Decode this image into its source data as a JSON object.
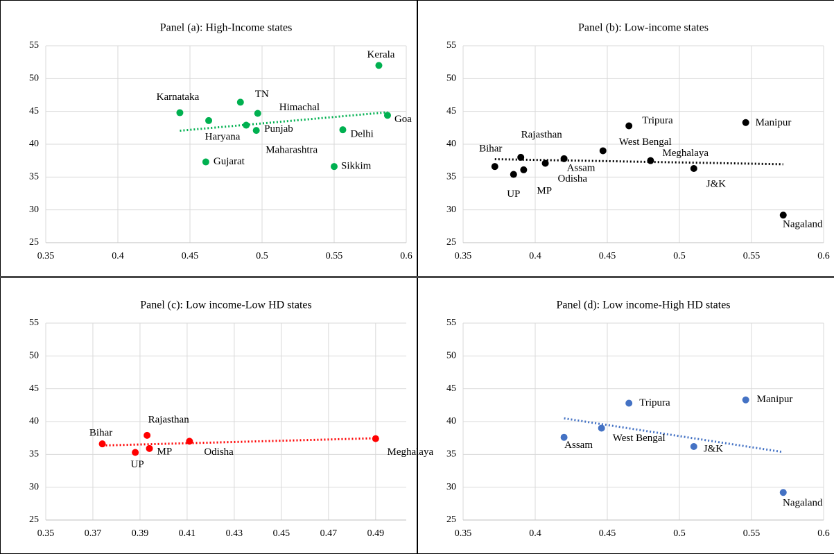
{
  "chart_data": [
    {
      "type": "scatter",
      "title": "Panel (a): High-Income states",
      "color": "#00b050",
      "trendline": true,
      "grid": true,
      "xlim": [
        0.35,
        0.6
      ],
      "xticks": [
        0.35,
        0.4,
        0.45,
        0.5,
        0.55,
        0.6
      ],
      "ylim": [
        25,
        55
      ],
      "yticks": [
        25,
        30,
        35,
        40,
        45,
        50,
        55
      ],
      "point_labels": [
        "Kerala",
        "Karnataka",
        "TN",
        "Himachal",
        "Haryana",
        "Punjab",
        "Maharashtra",
        "Goa",
        "Delhi",
        "Gujarat",
        "Sikkim"
      ],
      "x": [
        0.581,
        0.443,
        0.485,
        0.497,
        0.463,
        0.489,
        0.496,
        0.587,
        0.556,
        0.461,
        0.55
      ],
      "values": [
        52.0,
        44.8,
        46.4,
        44.7,
        43.6,
        42.9,
        42.1,
        44.4,
        42.2,
        37.3,
        36.6
      ]
    },
    {
      "type": "scatter",
      "title": "Panel (b): Low-income states",
      "color": "#000000",
      "trendline": true,
      "grid": true,
      "xlim": [
        0.35,
        0.6
      ],
      "xticks": [
        0.35,
        0.4,
        0.45,
        0.5,
        0.55,
        0.6
      ],
      "ylim": [
        25,
        55
      ],
      "yticks": [
        25,
        30,
        35,
        40,
        45,
        50,
        55
      ],
      "point_labels": [
        "Bihar",
        "UP",
        "Rajasthan",
        "MP",
        "Odisha",
        "Assam",
        "West Bengal",
        "Tripura",
        "Meghalaya",
        "J&K",
        "Manipur",
        "Nagaland"
      ],
      "x": [
        0.372,
        0.385,
        0.39,
        0.392,
        0.407,
        0.42,
        0.447,
        0.465,
        0.48,
        0.51,
        0.546,
        0.572
      ],
      "values": [
        36.6,
        35.4,
        38.0,
        36.1,
        37.1,
        37.8,
        39.0,
        42.8,
        37.5,
        36.3,
        43.3,
        29.2
      ]
    },
    {
      "type": "scatter",
      "title": "Panel (c): Low income-Low HD states",
      "color": "#ff0000",
      "trendline": true,
      "grid": true,
      "xlim": [
        0.35,
        0.503
      ],
      "xticks": [
        0.35,
        0.37,
        0.39,
        0.41,
        0.43,
        0.45,
        0.47,
        0.49
      ],
      "ylim": [
        25,
        55
      ],
      "yticks": [
        25,
        30,
        35,
        40,
        45,
        50,
        55
      ],
      "point_labels": [
        "Bihar",
        "UP",
        "Rajasthan",
        "MP",
        "Odisha",
        "Meghalaya"
      ],
      "x": [
        0.374,
        0.388,
        0.393,
        0.394,
        0.411,
        0.49
      ],
      "values": [
        36.6,
        35.3,
        37.9,
        35.9,
        37.0,
        37.4
      ]
    },
    {
      "type": "scatter",
      "title": "Panel (d): Low income-High HD states",
      "color": "#4472c4",
      "trendline": true,
      "grid": true,
      "xlim": [
        0.35,
        0.6
      ],
      "xticks": [
        0.35,
        0.4,
        0.45,
        0.5,
        0.55,
        0.6
      ],
      "ylim": [
        25,
        55
      ],
      "yticks": [
        25,
        30,
        35,
        40,
        45,
        50,
        55
      ],
      "point_labels": [
        "Assam",
        "West Bengal",
        "Tripura",
        "J&K",
        "Manipur",
        "Nagaland"
      ],
      "x": [
        0.42,
        0.446,
        0.465,
        0.51,
        0.546,
        0.572
      ],
      "values": [
        37.6,
        39.0,
        42.8,
        36.2,
        43.3,
        29.2
      ]
    }
  ]
}
